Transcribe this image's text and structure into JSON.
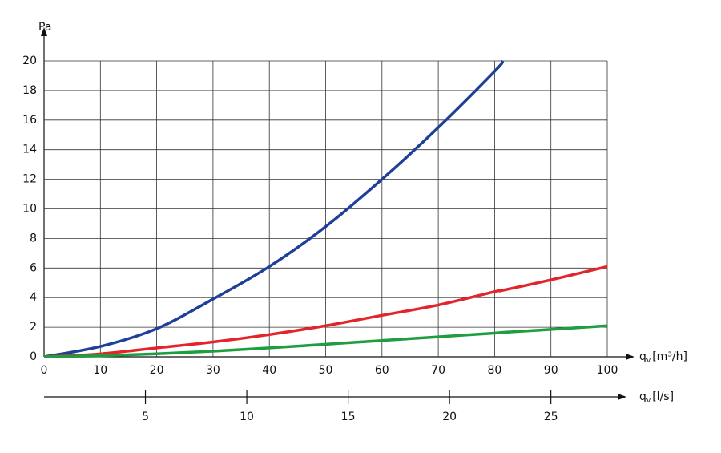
{
  "chart_data": {
    "type": "line",
    "y_label": "Pa",
    "x_label": {
      "symbol": "q",
      "subscript": "v",
      "unit": "[m³/h]"
    },
    "x2_label": {
      "symbol": "q",
      "subscript": "v",
      "unit": "[l/s]"
    },
    "x": [
      0,
      10,
      20,
      30,
      40,
      50,
      60,
      70,
      80,
      81.5,
      90,
      100
    ],
    "series": [
      {
        "color": "#1f3f99",
        "values": [
          0,
          0.7,
          1.9,
          3.9,
          6.1,
          8.8,
          12,
          15.5,
          19.3,
          20,
          null,
          null
        ]
      },
      {
        "color": "#e3242b",
        "values": [
          0,
          0.2,
          0.6,
          1.0,
          1.5,
          2.1,
          2.8,
          3.5,
          4.4,
          4.5,
          5.2,
          6.1
        ]
      },
      {
        "color": "#1e9e3e",
        "values": [
          0,
          0.07,
          0.2,
          0.38,
          0.6,
          0.85,
          1.1,
          1.35,
          1.6,
          1.65,
          1.85,
          2.1
        ]
      }
    ],
    "xlim": [
      0,
      100
    ],
    "xticks": [
      0,
      10,
      20,
      30,
      40,
      50,
      60,
      70,
      80,
      90,
      100
    ],
    "ylim": [
      0,
      20
    ],
    "yticks": [
      0,
      2,
      4,
      6,
      8,
      10,
      12,
      14,
      16,
      18,
      20
    ],
    "x2lim": [
      0,
      27.78
    ],
    "x2ticks": [
      5,
      10,
      15,
      20,
      25
    ],
    "grid": true
  }
}
